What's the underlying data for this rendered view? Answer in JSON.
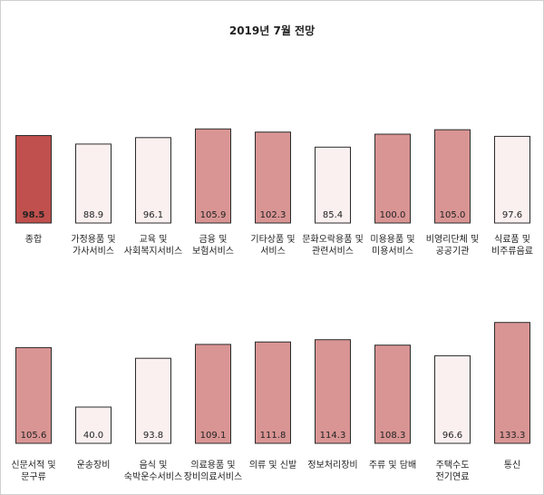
{
  "chart_data": {
    "type": "bar",
    "title": "2019년 7월 전망",
    "xlabel": "",
    "ylabel": "",
    "ylim": [
      0,
      145
    ],
    "grid": false,
    "legend": "none",
    "colors": {
      "highlight": "#c0504d",
      "above": "#d99594",
      "below": "#fbf0f0",
      "border": "#2b2b2b"
    },
    "panels": [
      {
        "categories": [
          [
            "종합"
          ],
          [
            "가정용품 및",
            "가사서비스"
          ],
          [
            "교육 및",
            "사회복지서비스"
          ],
          [
            "금융 및",
            "보험서비스"
          ],
          [
            "기타상품 및",
            "서비스"
          ],
          [
            "문화오락용품 및",
            "관련서비스"
          ],
          [
            "미용용품 및",
            "미용서비스"
          ],
          [
            "비영리단체 및",
            "공공기관"
          ],
          [
            "식료품 및",
            "비주류음료"
          ]
        ],
        "values": [
          98.5,
          88.9,
          96.1,
          105.9,
          102.3,
          85.4,
          100.0,
          105.0,
          97.6
        ],
        "labels": [
          "98.5",
          "88.9",
          "96.1",
          "105.9",
          "102.3",
          "85.4",
          "100.0",
          "105.0",
          "97.6"
        ]
      },
      {
        "categories": [
          [
            "신문서적 및",
            "문구류"
          ],
          [
            "운송장비"
          ],
          [
            "음식 및",
            "숙박운수서비스"
          ],
          [
            "의료용품 및",
            "장비의료서비스"
          ],
          [
            "의류 및 신발"
          ],
          [
            "정보처리장비"
          ],
          [
            "주류 및 담배"
          ],
          [
            "주택수도",
            "전기연료"
          ],
          [
            "통신"
          ]
        ],
        "values": [
          105.6,
          40.0,
          93.8,
          109.1,
          111.8,
          114.3,
          108.3,
          96.6,
          133.3
        ],
        "labels": [
          "105.6",
          "40.0",
          "93.8",
          "109.1",
          "111.8",
          "114.3",
          "108.3",
          "96.6",
          "133.3"
        ]
      }
    ]
  }
}
